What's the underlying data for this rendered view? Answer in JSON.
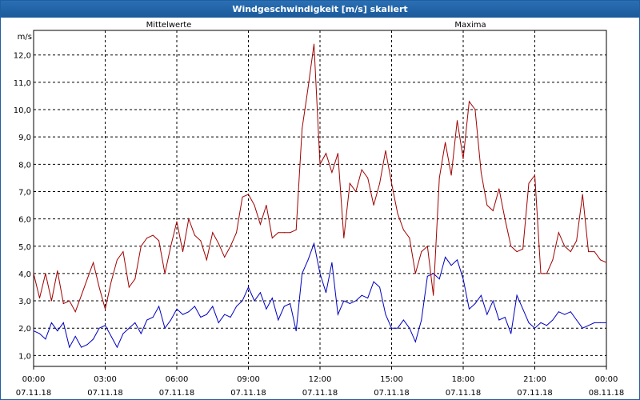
{
  "window": {
    "title": "Windgeschwindigkeit [m/s] skaliert"
  },
  "chart_data": {
    "type": "line",
    "title": "Windgeschwindigkeit [m/s] skaliert",
    "ylabel": "m/s",
    "ylim": [
      0.6,
      12.9
    ],
    "yticks": [
      "1,0",
      "2,0",
      "3,0",
      "4,0",
      "5,0",
      "6,0",
      "7,0",
      "8,0",
      "9,0",
      "10,0",
      "11,0",
      "12,0"
    ],
    "xticks": [
      {
        "time": "00:00",
        "date": "07.11.18"
      },
      {
        "time": "03:00",
        "date": "07.11.18"
      },
      {
        "time": "06:00",
        "date": "07.11.18"
      },
      {
        "time": "09:00",
        "date": "07.11.18"
      },
      {
        "time": "12:00",
        "date": "07.11.18"
      },
      {
        "time": "15:00",
        "date": "07.11.18"
      },
      {
        "time": "18:00",
        "date": "07.11.18"
      },
      {
        "time": "21:00",
        "date": "07.11.18"
      },
      {
        "time": "00:00",
        "date": "08.11.18"
      }
    ],
    "x_range_hours": [
      0,
      24
    ],
    "grid": true,
    "colors": {
      "Mittelwerte": "#0000c0",
      "Maxima": "#a00000"
    },
    "series": [
      {
        "name": "Mittelwerte",
        "x": [
          0,
          0.25,
          0.5,
          0.75,
          1,
          1.25,
          1.5,
          1.75,
          2,
          2.25,
          2.5,
          2.75,
          3,
          3.25,
          3.5,
          3.75,
          4,
          4.25,
          4.5,
          4.75,
          5,
          5.25,
          5.5,
          5.75,
          6,
          6.25,
          6.5,
          6.75,
          7,
          7.25,
          7.5,
          7.75,
          8,
          8.25,
          8.5,
          8.75,
          9,
          9.25,
          9.5,
          9.75,
          10,
          10.25,
          10.5,
          10.75,
          11,
          11.25,
          11.5,
          11.75,
          12,
          12.25,
          12.5,
          12.75,
          13,
          13.25,
          13.5,
          13.75,
          14,
          14.25,
          14.5,
          14.75,
          15,
          15.25,
          15.5,
          15.75,
          16,
          16.25,
          16.5,
          16.75,
          17,
          17.25,
          17.5,
          17.75,
          18,
          18.25,
          18.5,
          18.75,
          19,
          19.25,
          19.5,
          19.75,
          20,
          20.25,
          20.5,
          20.75,
          21,
          21.25,
          21.5,
          21.75,
          22,
          22.25,
          22.5,
          22.75,
          23,
          23.25,
          23.5,
          23.75,
          24
        ],
        "values": [
          1.9,
          1.8,
          1.6,
          2.2,
          1.9,
          2.2,
          1.3,
          1.7,
          1.3,
          1.4,
          1.6,
          2.0,
          2.1,
          1.7,
          1.3,
          1.8,
          2.0,
          2.2,
          1.8,
          2.3,
          2.4,
          2.8,
          2.0,
          2.3,
          2.7,
          2.5,
          2.6,
          2.8,
          2.4,
          2.5,
          2.8,
          2.2,
          2.5,
          2.4,
          2.8,
          3.0,
          3.5,
          3.0,
          3.3,
          2.7,
          3.1,
          2.3,
          2.8,
          2.9,
          1.9,
          4.0,
          4.5,
          5.1,
          4.0,
          3.3,
          4.4,
          2.5,
          3.0,
          2.9,
          3.0,
          3.2,
          3.1,
          3.7,
          3.5,
          2.5,
          2.0,
          2.0,
          2.3,
          2.0,
          1.5,
          2.3,
          3.9,
          4.0,
          3.8,
          4.6,
          4.3,
          4.5,
          3.8,
          2.7,
          2.9,
          3.2,
          2.5,
          3.0,
          2.3,
          2.4,
          1.8,
          3.2,
          2.7,
          2.2,
          2.0,
          2.2,
          2.1,
          2.3,
          2.6,
          2.5,
          2.6,
          2.3,
          2.0,
          2.1,
          2.2,
          2.2,
          2.2
        ]
      },
      {
        "name": "Maxima",
        "x": [
          0,
          0.25,
          0.5,
          0.75,
          1,
          1.25,
          1.5,
          1.75,
          2,
          2.25,
          2.5,
          2.75,
          3,
          3.25,
          3.5,
          3.75,
          4,
          4.25,
          4.5,
          4.75,
          5,
          5.25,
          5.5,
          5.75,
          6,
          6.25,
          6.5,
          6.75,
          7,
          7.25,
          7.5,
          7.75,
          8,
          8.25,
          8.5,
          8.75,
          9,
          9.25,
          9.5,
          9.75,
          10,
          10.25,
          10.5,
          10.75,
          11,
          11.25,
          11.5,
          11.75,
          12,
          12.25,
          12.5,
          12.75,
          13,
          13.25,
          13.5,
          13.75,
          14,
          14.25,
          14.5,
          14.75,
          15,
          15.25,
          15.5,
          15.75,
          16,
          16.25,
          16.5,
          16.75,
          17,
          17.25,
          17.5,
          17.75,
          18,
          18.25,
          18.5,
          18.75,
          19,
          19.25,
          19.5,
          19.75,
          20,
          20.25,
          20.5,
          20.75,
          21,
          21.25,
          21.5,
          21.75,
          22,
          22.25,
          22.5,
          22.75,
          23,
          23.25,
          23.5,
          23.75,
          24
        ],
        "values": [
          4.0,
          3.1,
          4.0,
          3.0,
          4.1,
          2.9,
          3.0,
          2.6,
          3.2,
          3.8,
          4.4,
          3.5,
          2.7,
          3.7,
          4.5,
          4.8,
          3.5,
          3.8,
          5.0,
          5.3,
          5.4,
          5.2,
          4.0,
          5.0,
          5.9,
          4.8,
          6.0,
          5.4,
          5.2,
          4.5,
          5.5,
          5.1,
          4.6,
          5.0,
          5.5,
          6.8,
          6.9,
          6.5,
          5.8,
          6.5,
          5.3,
          5.5,
          5.5,
          5.5,
          5.6,
          9.3,
          10.8,
          12.4,
          8.0,
          8.4,
          7.7,
          8.4,
          5.3,
          7.3,
          7.0,
          7.8,
          7.5,
          6.5,
          7.3,
          8.5,
          7.3,
          6.2,
          5.6,
          5.3,
          4.0,
          4.8,
          5.0,
          3.2,
          7.5,
          8.8,
          7.6,
          9.6,
          8.2,
          10.3,
          10.0,
          7.7,
          6.5,
          6.3,
          7.1,
          6.0,
          5.0,
          4.8,
          4.9,
          7.3,
          7.6,
          4.0,
          4.0,
          4.5,
          5.5,
          5.0,
          4.8,
          5.2,
          6.9,
          4.8,
          4.8,
          4.5,
          4.4
        ]
      }
    ]
  }
}
